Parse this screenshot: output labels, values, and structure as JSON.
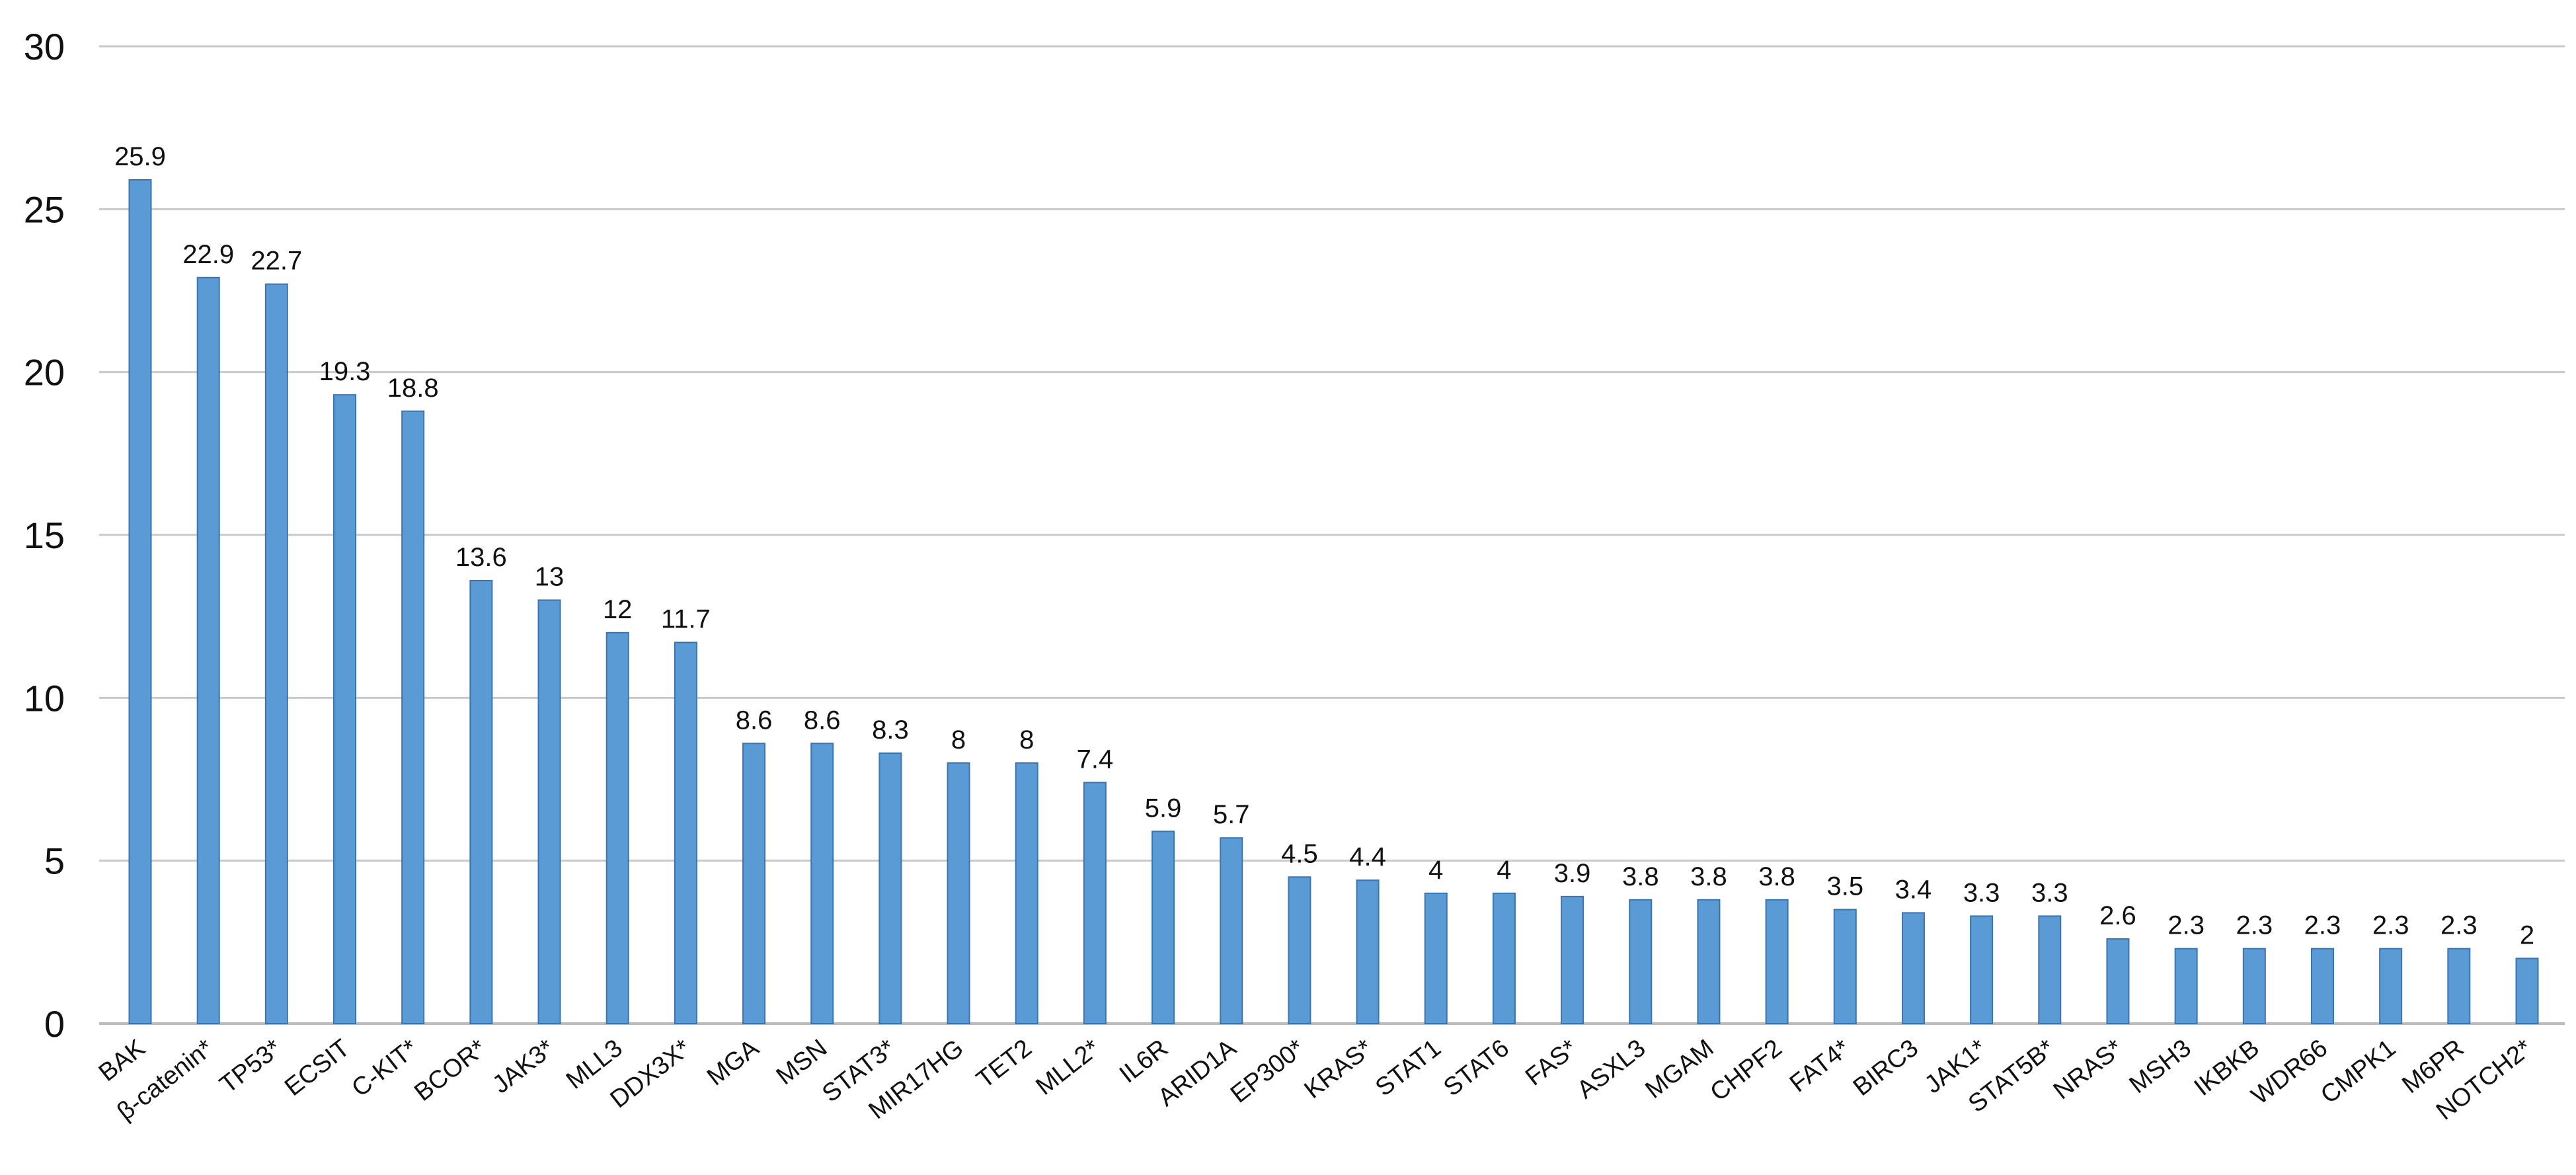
{
  "chart_data": {
    "type": "bar",
    "title": "",
    "xlabel": "",
    "ylabel": "",
    "ylim": [
      0,
      30
    ],
    "yticks": [
      0,
      5,
      10,
      15,
      20,
      25,
      30
    ],
    "grid": true,
    "bar_color": "#5b9bd5",
    "bar_edge_color": "#3a75b0",
    "categories": [
      "BAK",
      "β-catenin*",
      "TP53*",
      "ECSIT",
      "C-KIT*",
      "BCOR*",
      "JAK3*",
      "MLL3",
      "DDX3X*",
      "MGA",
      "MSN",
      "STAT3*",
      "MIR17HG",
      "TET2",
      "MLL2*",
      "IL6R",
      "ARID1A",
      "EP300*",
      "KRAS*",
      "STAT1",
      "STAT6",
      "FAS*",
      "ASXL3",
      "MGAM",
      "CHPF2",
      "FAT4*",
      "BIRC3",
      "JAK1*",
      "STAT5B*",
      "NRAS*",
      "MSH3",
      "IKBKB",
      "WDR66",
      "CMPK1",
      "M6PR",
      "NOTCH2*"
    ],
    "values": [
      25.9,
      22.9,
      22.7,
      19.3,
      18.8,
      13.6,
      13,
      12,
      11.7,
      8.6,
      8.6,
      8.3,
      8,
      8,
      7.4,
      5.9,
      5.7,
      4.5,
      4.4,
      4,
      4,
      3.9,
      3.8,
      3.8,
      3.8,
      3.5,
      3.4,
      3.3,
      3.3,
      2.6,
      2.3,
      2.3,
      2.3,
      2.3,
      2.3,
      2
    ],
    "data_labels": [
      "25.9",
      "22.9",
      "22.7",
      "19.3",
      "18.8",
      "13.6",
      "13",
      "12",
      "11.7",
      "8.6",
      "8.6",
      "8.3",
      "8",
      "8",
      "7.4",
      "5.9",
      "5.7",
      "4.5",
      "4.4",
      "4",
      "4",
      "3.9",
      "3.8",
      "3.8",
      "3.8",
      "3.5",
      "3.4",
      "3.3",
      "3.3",
      "2.6",
      "2.3",
      "2.3",
      "2.3",
      "2.3",
      "2.3",
      "2"
    ]
  }
}
